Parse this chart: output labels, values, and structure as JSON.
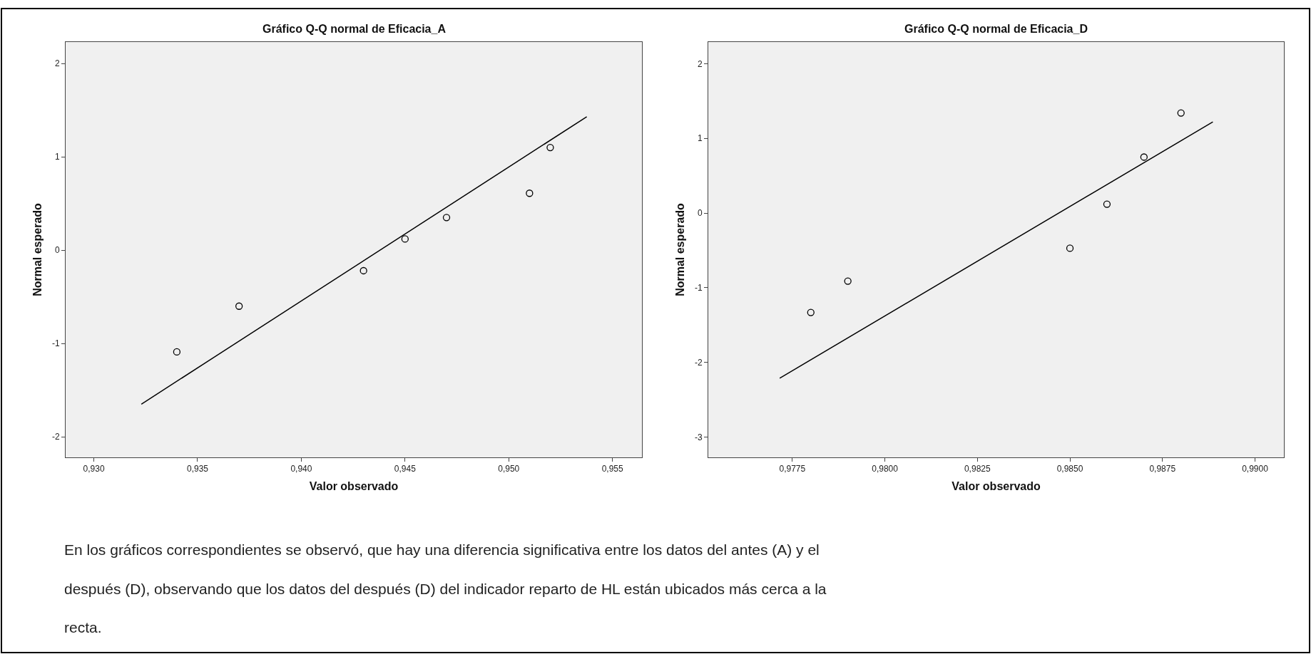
{
  "chart_data": [
    {
      "type": "scatter",
      "title": "Gráfico Q-Q normal de Eficacia_A",
      "xlabel": "Valor observado",
      "ylabel": "Normal esperado",
      "grid": false,
      "xlim": [
        0.92864,
        0.95642
      ],
      "ylim": [
        -2.22,
        2.23
      ],
      "xticks": [
        {
          "value": 0.93,
          "label": "0,930"
        },
        {
          "value": 0.935,
          "label": "0,935"
        },
        {
          "value": 0.94,
          "label": "0,940"
        },
        {
          "value": 0.945,
          "label": "0,945"
        },
        {
          "value": 0.95,
          "label": "0,950"
        },
        {
          "value": 0.955,
          "label": "0,955"
        }
      ],
      "yticks": [
        -2,
        -1,
        0,
        1,
        2
      ],
      "series": [
        {
          "marker": "circle",
          "color": "#000000",
          "x": [
            0.934,
            0.937,
            0.943,
            0.945,
            0.947,
            0.951,
            0.952
          ],
          "values": [
            -1.09,
            -0.6,
            -0.22,
            0.12,
            0.35,
            0.61,
            1.1
          ]
        },
        {
          "type": "line",
          "marker": "none",
          "color": "#000000",
          "x": [
            0.93229,
            0.95376
          ],
          "values": [
            -1.65,
            1.43
          ]
        }
      ],
      "annotations": [
        "En los gráficos correspondientes se observó, que hay una diferencia significativa entre los datos del antes (A) y el después (D), observando que los datos del después (D) del indicador reparto de HL están ubicados más cerca a la recta."
      ]
    },
    {
      "type": "scatter",
      "title": "Gráfico Q-Q normal de Eficacia_D",
      "xlabel": "Valor observado",
      "ylabel": "Normal esperado",
      "grid": false,
      "xlim": [
        0.97523,
        0.99078
      ],
      "ylim": [
        -3.27,
        2.29
      ],
      "xticks": [
        {
          "value": 0.9775,
          "label": "0,9775"
        },
        {
          "value": 0.98,
          "label": "0,9800"
        },
        {
          "value": 0.9825,
          "label": "0,9825"
        },
        {
          "value": 0.985,
          "label": "0,9850"
        },
        {
          "value": 0.9875,
          "label": "0,9875"
        },
        {
          "value": 0.99,
          "label": "0,9900"
        }
      ],
      "yticks": [
        -3,
        -2,
        -1,
        0,
        1,
        2
      ],
      "series": [
        {
          "marker": "circle",
          "color": "#000000",
          "x": [
            0.978,
            0.979,
            0.985,
            0.986,
            0.987,
            0.988
          ],
          "values": [
            -1.33,
            -0.91,
            -0.47,
            0.12,
            0.75,
            1.34
          ]
        },
        {
          "type": "line",
          "marker": "none",
          "color": "#000000",
          "x": [
            0.97716,
            0.98886
          ],
          "values": [
            -2.21,
            1.22
          ]
        }
      ]
    }
  ]
}
